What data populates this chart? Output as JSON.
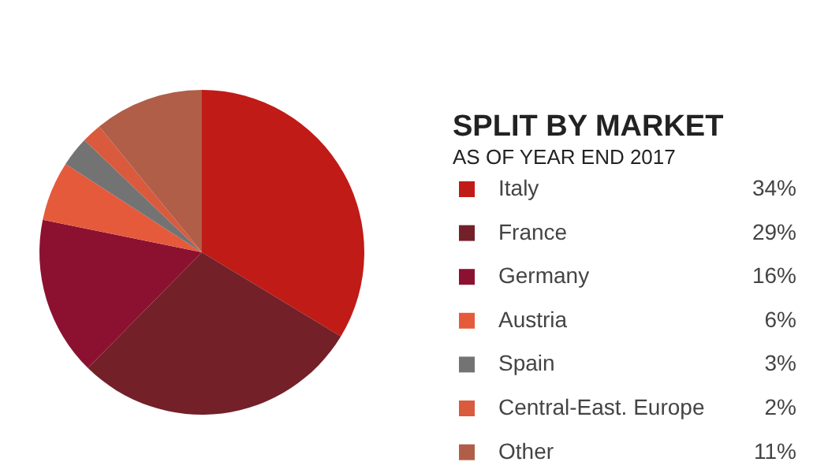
{
  "chart_data": {
    "type": "pie",
    "title": "SPLIT BY MARKET",
    "subtitle": "AS OF YEAR END 2017",
    "categories": [
      "Italy",
      "France",
      "Germany",
      "Austria",
      "Spain",
      "Central-East. Europe",
      "Other"
    ],
    "values": [
      34,
      29,
      16,
      6,
      3,
      2,
      11
    ],
    "value_labels": [
      "34%",
      "29%",
      "16%",
      "6%",
      "3%",
      "2%",
      "11%"
    ],
    "colors": [
      "#c01b17",
      "#732028",
      "#8c1130",
      "#e65a3c",
      "#737373",
      "#d95a3d",
      "#b05e48"
    ],
    "legend": "right"
  }
}
